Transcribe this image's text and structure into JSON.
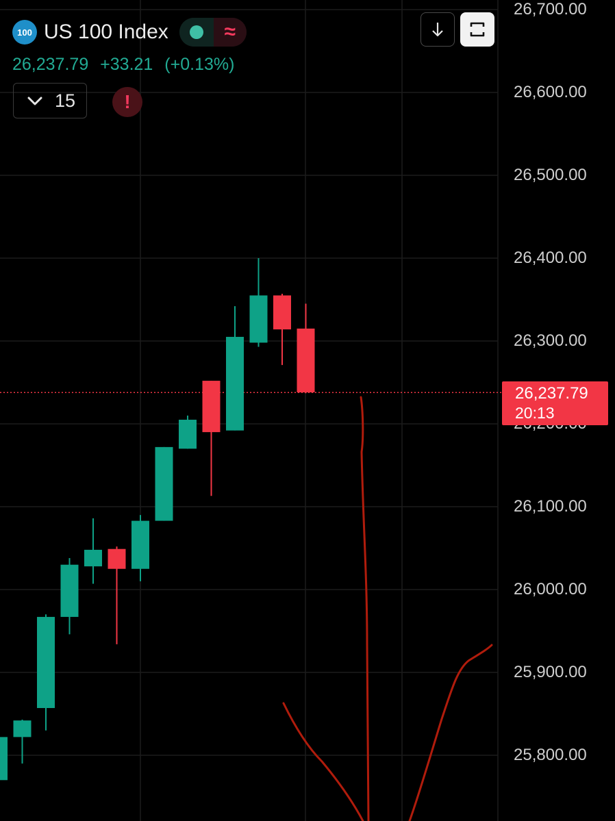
{
  "header": {
    "logo_text": "100",
    "symbol_title": "US 100 Index",
    "status_dot_color": "#3fbfa5",
    "wave_glyph": "≈",
    "last_price": "26,237.79",
    "change": "+33.21",
    "change_percent": "(+0.13%)",
    "interval": "15",
    "alert_glyph": "!"
  },
  "toolbar": {
    "download_icon": "arrow-down-icon",
    "fullscreen_icon": "fullscreen-icon"
  },
  "price_axis": {
    "labels": [
      "26,700.00",
      "26,600.00",
      "26,500.00",
      "26,400.00",
      "26,300.00",
      "26,200.00",
      "26,100.00",
      "26,000.00",
      "25,900.00",
      "25,800.00"
    ]
  },
  "price_tag": {
    "price": "26,237.79",
    "countdown": "20:13",
    "color": "#f23645"
  },
  "colors": {
    "up": "#0ea287",
    "down": "#f23645",
    "grid": "#1c1c1c",
    "annotation": "#b01c0c"
  },
  "chart_data": {
    "type": "candlestick",
    "y_axis_values": [
      26700,
      26600,
      26500,
      26400,
      26300,
      26200,
      26100,
      26000,
      25900,
      25800
    ],
    "last_price": 26237.79,
    "candles": [
      {
        "o": 25770,
        "h": 25820,
        "l": 25755,
        "c": 25822
      },
      {
        "o": 25822,
        "h": 25843,
        "l": 25790,
        "c": 25842
      },
      {
        "o": 25857,
        "h": 25970,
        "l": 25830,
        "c": 25967
      },
      {
        "o": 25967,
        "h": 26038,
        "l": 25946,
        "c": 26030
      },
      {
        "o": 26028,
        "h": 26086,
        "l": 26007,
        "c": 26048
      },
      {
        "o": 26049,
        "h": 26052,
        "l": 25934,
        "c": 26025
      },
      {
        "o": 26025,
        "h": 26090,
        "l": 26010,
        "c": 26083
      },
      {
        "o": 26083,
        "h": 26172,
        "l": 26083,
        "c": 26172
      },
      {
        "o": 26170,
        "h": 26210,
        "l": 26170,
        "c": 26205
      },
      {
        "o": 26252,
        "h": 26252,
        "l": 26113,
        "c": 26190
      },
      {
        "o": 26192,
        "h": 26342,
        "l": 26192,
        "c": 26305
      },
      {
        "o": 26298,
        "h": 26400,
        "l": 26293,
        "c": 26355
      },
      {
        "o": 26355,
        "h": 26357,
        "l": 26271,
        "c": 26314
      },
      {
        "o": 26315,
        "h": 26345,
        "l": 26237,
        "c": 26238
      }
    ]
  }
}
